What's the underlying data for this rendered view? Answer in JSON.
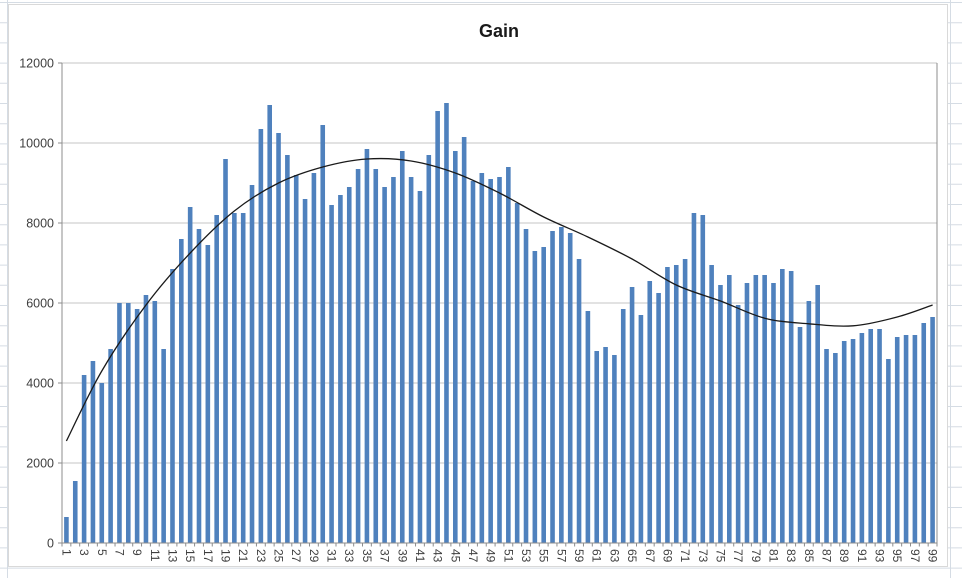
{
  "chart_data": {
    "type": "bar",
    "title": "Gain",
    "x_label": "",
    "y_label": "",
    "x_range": [
      1,
      99
    ],
    "x_tick_labels": [
      "1",
      "3",
      "5",
      "7",
      "9",
      "11",
      "13",
      "15",
      "17",
      "19",
      "21",
      "23",
      "25",
      "27",
      "29",
      "31",
      "33",
      "35",
      "37",
      "39",
      "41",
      "43",
      "45",
      "47",
      "49",
      "51",
      "53",
      "55",
      "57",
      "59",
      "61",
      "63",
      "65",
      "67",
      "69",
      "71",
      "73",
      "75",
      "77",
      "79",
      "81",
      "83",
      "85",
      "87",
      "89",
      "91",
      "93",
      "95",
      "97",
      "99"
    ],
    "y_ticks": [
      0,
      2000,
      4000,
      6000,
      8000,
      10000,
      12000
    ],
    "ylim": [
      0,
      12000
    ],
    "grid": "horizontal",
    "legend": "none",
    "series": [
      {
        "name": "Gain",
        "type": "bar",
        "values": [
          650,
          1550,
          4200,
          4550,
          4000,
          4850,
          6000,
          6000,
          5850,
          6200,
          6050,
          4850,
          6850,
          7600,
          8400,
          7850,
          7450,
          8200,
          9600,
          8250,
          8250,
          8950,
          10350,
          10950,
          10250,
          9700,
          9200,
          8600,
          9250,
          10450,
          8450,
          8700,
          8900,
          9350,
          9850,
          9350,
          8900,
          9150,
          9800,
          9150,
          8800,
          9700,
          10800,
          11000,
          9800,
          10150,
          9050,
          9250,
          9100,
          9150,
          9400,
          8500,
          7850,
          7300,
          7400,
          7800,
          7900,
          7750,
          7100,
          5800,
          4800,
          4900,
          4700,
          5850,
          6400,
          5700,
          6550,
          6250,
          6900,
          6950,
          7100,
          8250,
          8200,
          6950,
          6450,
          6700,
          5950,
          6500,
          6700,
          6700,
          6500,
          6850,
          6800,
          5400,
          6050,
          6450,
          4850,
          4750,
          5050,
          5100,
          5250,
          5350,
          5350,
          4600,
          5150,
          5200,
          5200,
          5500,
          5650
        ]
      },
      {
        "name": "trendline",
        "type": "smooth-line",
        "points": [
          [
            1,
            2550
          ],
          [
            5,
            4300
          ],
          [
            10,
            5950
          ],
          [
            15,
            7250
          ],
          [
            20,
            8300
          ],
          [
            25,
            9000
          ],
          [
            30,
            9400
          ],
          [
            35,
            9600
          ],
          [
            40,
            9550
          ],
          [
            45,
            9250
          ],
          [
            50,
            8750
          ],
          [
            55,
            8150
          ],
          [
            60,
            7650
          ],
          [
            65,
            7100
          ],
          [
            70,
            6450
          ],
          [
            75,
            6050
          ],
          [
            80,
            5620
          ],
          [
            85,
            5480
          ],
          [
            90,
            5430
          ],
          [
            95,
            5650
          ],
          [
            99,
            5950
          ]
        ]
      }
    ],
    "colors": {
      "bar": "#4F81BD",
      "trendline": "#1a1a1a",
      "gridline": "#c6c6c6",
      "axis": "#8c8c8c",
      "tick_text": "#3f3f3f",
      "chart_border": "#d9d9d9",
      "sheet_gridline": "#d5dce4",
      "background": "#ffffff"
    }
  }
}
